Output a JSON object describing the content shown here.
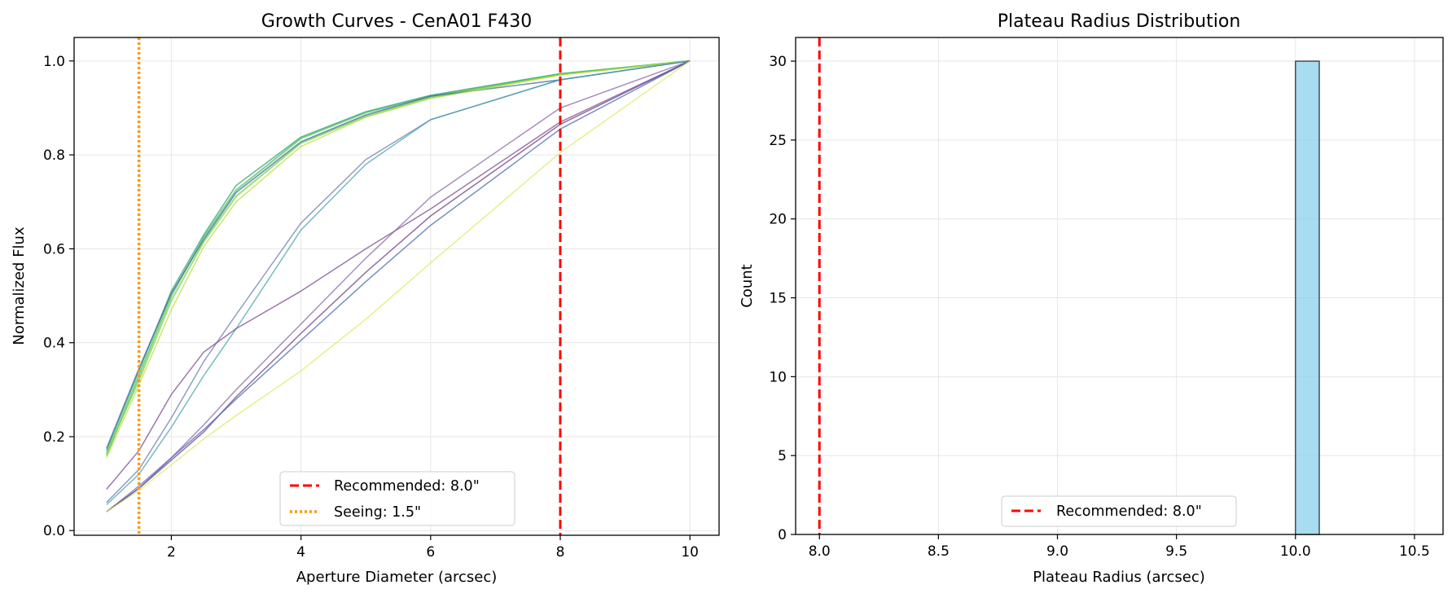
{
  "chart_data": [
    {
      "type": "line",
      "title": "Growth Curves - CenA01 F430",
      "xlabel": "Aperture Diameter (arcsec)",
      "ylabel": "Normalized Flux",
      "xlim": [
        0.5,
        10.45
      ],
      "ylim": [
        -0.01,
        1.05
      ],
      "xticks": [
        2,
        4,
        6,
        8,
        10
      ],
      "yticks": [
        0.0,
        0.2,
        0.4,
        0.6,
        0.8,
        1.0
      ],
      "grid": true,
      "legend_position": "lower-center",
      "x": [
        1,
        1.5,
        2,
        2.5,
        3,
        4,
        5,
        6,
        8,
        10
      ],
      "series": [
        {
          "values": [
            0.16,
            0.33,
            0.5,
            0.625,
            0.725,
            0.835,
            0.89,
            0.925,
            0.972,
            1.0
          ],
          "color": "#5cc463",
          "width": 2.2
        },
        {
          "values": [
            0.17,
            0.34,
            0.51,
            0.63,
            0.735,
            0.838,
            0.892,
            0.927,
            0.973,
            1.0
          ],
          "color": "#2fa77a",
          "width": 1.6
        },
        {
          "values": [
            0.165,
            0.32,
            0.49,
            0.615,
            0.712,
            0.825,
            0.882,
            0.922,
            0.971,
            1.0
          ],
          "color": "#7ad151",
          "width": 2.0
        },
        {
          "values": [
            0.175,
            0.345,
            0.505,
            0.62,
            0.72,
            0.828,
            0.885,
            0.925,
            0.96,
            1.0
          ],
          "color": "#3b6aa0",
          "width": 1.6
        },
        {
          "values": [
            0.155,
            0.31,
            0.47,
            0.605,
            0.7,
            0.818,
            0.88,
            0.92,
            0.97,
            1.0
          ],
          "color": "#b8de29",
          "width": 1.4
        },
        {
          "values": [
            0.06,
            0.13,
            0.24,
            0.36,
            0.46,
            0.655,
            0.79,
            0.875,
            0.96,
            1.0
          ],
          "color": "#6a7fae",
          "width": 1.5
        },
        {
          "values": [
            0.055,
            0.12,
            0.22,
            0.33,
            0.43,
            0.64,
            0.78,
            0.875,
            0.96,
            1.0
          ],
          "color": "#4aa3b0",
          "width": 1.5
        },
        {
          "values": [
            0.088,
            0.17,
            0.29,
            0.38,
            0.43,
            0.51,
            0.6,
            0.685,
            0.87,
            1.0
          ],
          "color": "#7b4a8f",
          "width": 1.5
        },
        {
          "values": [
            0.04,
            0.095,
            0.155,
            0.225,
            0.3,
            0.44,
            0.58,
            0.71,
            0.9,
            1.0
          ],
          "color": "#8a6aa5",
          "width": 1.5
        },
        {
          "values": [
            0.04,
            0.09,
            0.15,
            0.21,
            0.285,
            0.42,
            0.55,
            0.67,
            0.865,
            1.0
          ],
          "color": "#6b3d8a",
          "width": 1.5
        },
        {
          "values": [
            0.04,
            0.09,
            0.155,
            0.215,
            0.28,
            0.405,
            0.53,
            0.65,
            0.855,
            1.0
          ],
          "color": "#4a6ab0",
          "width": 1.5
        },
        {
          "values": [
            0.04,
            0.085,
            0.14,
            0.195,
            0.245,
            0.34,
            0.45,
            0.57,
            0.805,
            1.0
          ],
          "color": "#dde85a",
          "width": 1.4
        }
      ],
      "vlines": [
        {
          "x": 8.0,
          "label": "Recommended: 8.0\"",
          "color": "#ff0000",
          "style": "dashed"
        },
        {
          "x": 1.5,
          "label": "Seeing: 1.5\"",
          "color": "#ff9900",
          "style": "dotted"
        }
      ]
    },
    {
      "type": "bar",
      "title": "Plateau Radius Distribution",
      "xlabel": "Plateau Radius (arcsec)",
      "ylabel": "Count",
      "xlim": [
        7.9,
        10.62
      ],
      "ylim": [
        0,
        31.5
      ],
      "xticks": [
        8.0,
        8.5,
        9.0,
        9.5,
        10.0,
        10.5
      ],
      "yticks": [
        0,
        5,
        10,
        15,
        20,
        25,
        30
      ],
      "grid": true,
      "legend_position": "lower-center",
      "bins": [
        {
          "x0": 10.0,
          "x1": 10.1,
          "count": 30
        }
      ],
      "bar_color": "#87ceeb",
      "vlines": [
        {
          "x": 8.0,
          "label": "Recommended: 8.0\"",
          "color": "#ff0000",
          "style": "dashed"
        }
      ]
    }
  ]
}
